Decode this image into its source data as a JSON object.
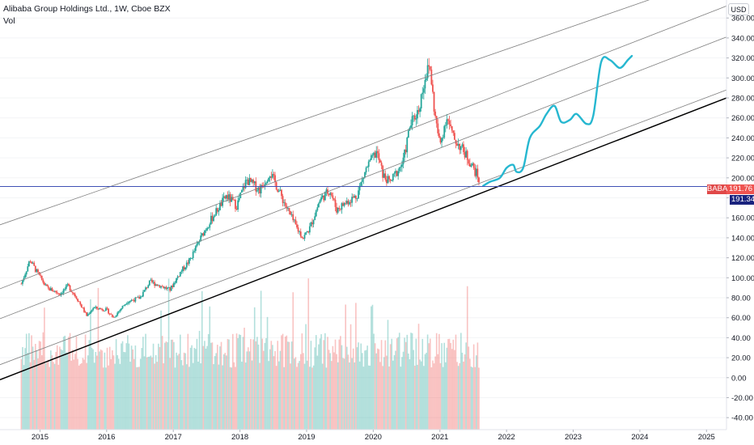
{
  "header": {
    "title": "Alibaba Group Holdings Ltd., 1W, Cboe BZX",
    "indicator": "Vol"
  },
  "currency_label": "USD",
  "price_labels": {
    "symbol": "BABA",
    "last_price": "191.76",
    "line_price": "191.34"
  },
  "colors": {
    "up": "#26a69a",
    "down": "#ef5350",
    "projection": "#26b7d0",
    "channel": "#808080",
    "support": "#000000",
    "horizontal_line": "#3f51b5"
  },
  "chart_data": {
    "type": "candlestick",
    "x_axis": {
      "ticks": [
        "2015",
        "2016",
        "2017",
        "2018",
        "2019",
        "2020",
        "2021",
        "2022",
        "2023",
        "2024",
        "2025"
      ],
      "range": [
        2014.4,
        2025.3
      ]
    },
    "y_axis": {
      "ticks": [
        "360.00",
        "340.00",
        "320.00",
        "300.00",
        "280.00",
        "260.00",
        "240.00",
        "220.00",
        "200.00",
        "180.00",
        "160.00",
        "140.00",
        "120.00",
        "100.00",
        "80.00",
        "60.00",
        "40.00",
        "20.00",
        "0.00",
        "-20.00",
        "-40.00"
      ],
      "range": [
        -52,
        378
      ]
    },
    "price_anchors": [
      [
        2014.72,
        94
      ],
      [
        2014.85,
        118
      ],
      [
        2014.95,
        106
      ],
      [
        2015.1,
        90
      ],
      [
        2015.3,
        84
      ],
      [
        2015.42,
        92
      ],
      [
        2015.55,
        80
      ],
      [
        2015.7,
        62
      ],
      [
        2015.8,
        70
      ],
      [
        2016.0,
        68
      ],
      [
        2016.1,
        60
      ],
      [
        2016.3,
        76
      ],
      [
        2016.5,
        80
      ],
      [
        2016.65,
        96
      ],
      [
        2016.8,
        92
      ],
      [
        2016.95,
        88
      ],
      [
        2017.1,
        105
      ],
      [
        2017.25,
        118
      ],
      [
        2017.45,
        145
      ],
      [
        2017.6,
        162
      ],
      [
        2017.8,
        182
      ],
      [
        2017.95,
        172
      ],
      [
        2018.1,
        198
      ],
      [
        2018.3,
        188
      ],
      [
        2018.45,
        206
      ],
      [
        2018.55,
        192
      ],
      [
        2018.7,
        170
      ],
      [
        2018.85,
        150
      ],
      [
        2018.95,
        140
      ],
      [
        2019.05,
        150
      ],
      [
        2019.2,
        178
      ],
      [
        2019.35,
        188
      ],
      [
        2019.45,
        168
      ],
      [
        2019.6,
        176
      ],
      [
        2019.75,
        182
      ],
      [
        2019.9,
        210
      ],
      [
        2020.05,
        226
      ],
      [
        2020.15,
        202
      ],
      [
        2020.25,
        195
      ],
      [
        2020.45,
        216
      ],
      [
        2020.55,
        252
      ],
      [
        2020.68,
        268
      ],
      [
        2020.78,
        302
      ],
      [
        2020.85,
        312
      ],
      [
        2020.92,
        265
      ],
      [
        2021.0,
        232
      ],
      [
        2021.1,
        262
      ],
      [
        2021.2,
        240
      ],
      [
        2021.3,
        232
      ],
      [
        2021.4,
        222
      ],
      [
        2021.5,
        210
      ],
      [
        2021.58,
        200
      ],
      [
        2021.6,
        191.76
      ]
    ],
    "volume_bars": {
      "baseline": -52,
      "typical_range": [
        10,
        45
      ],
      "max_value": 100
    },
    "projection_path": [
      [
        2021.65,
        192
      ],
      [
        2021.75,
        196
      ],
      [
        2021.9,
        200
      ],
      [
        2022.0,
        210
      ],
      [
        2022.1,
        213
      ],
      [
        2022.15,
        206
      ],
      [
        2022.25,
        210
      ],
      [
        2022.35,
        240
      ],
      [
        2022.5,
        252
      ],
      [
        2022.6,
        264
      ],
      [
        2022.72,
        272
      ],
      [
        2022.82,
        256
      ],
      [
        2022.95,
        258
      ],
      [
        2023.05,
        264
      ],
      [
        2023.2,
        254
      ],
      [
        2023.3,
        262
      ],
      [
        2023.42,
        316
      ],
      [
        2023.55,
        318
      ],
      [
        2023.7,
        310
      ],
      [
        2023.82,
        318
      ],
      [
        2023.88,
        322
      ]
    ],
    "support_line": [
      [
        2014.4,
        -2
      ],
      [
        2025.3,
        280
      ]
    ],
    "channel_lines": [
      [
        [
          2014.4,
          13
        ],
        [
          2025.3,
          288
        ]
      ],
      [
        [
          2014.4,
          59
        ],
        [
          2025.3,
          341
        ]
      ],
      [
        [
          2014.4,
          89
        ],
        [
          2025.3,
          372
        ]
      ],
      [
        [
          2014.4,
          153
        ],
        [
          2025.3,
          405
        ]
      ]
    ],
    "horizontal_line": 191.34,
    "last_price": 191.76
  }
}
